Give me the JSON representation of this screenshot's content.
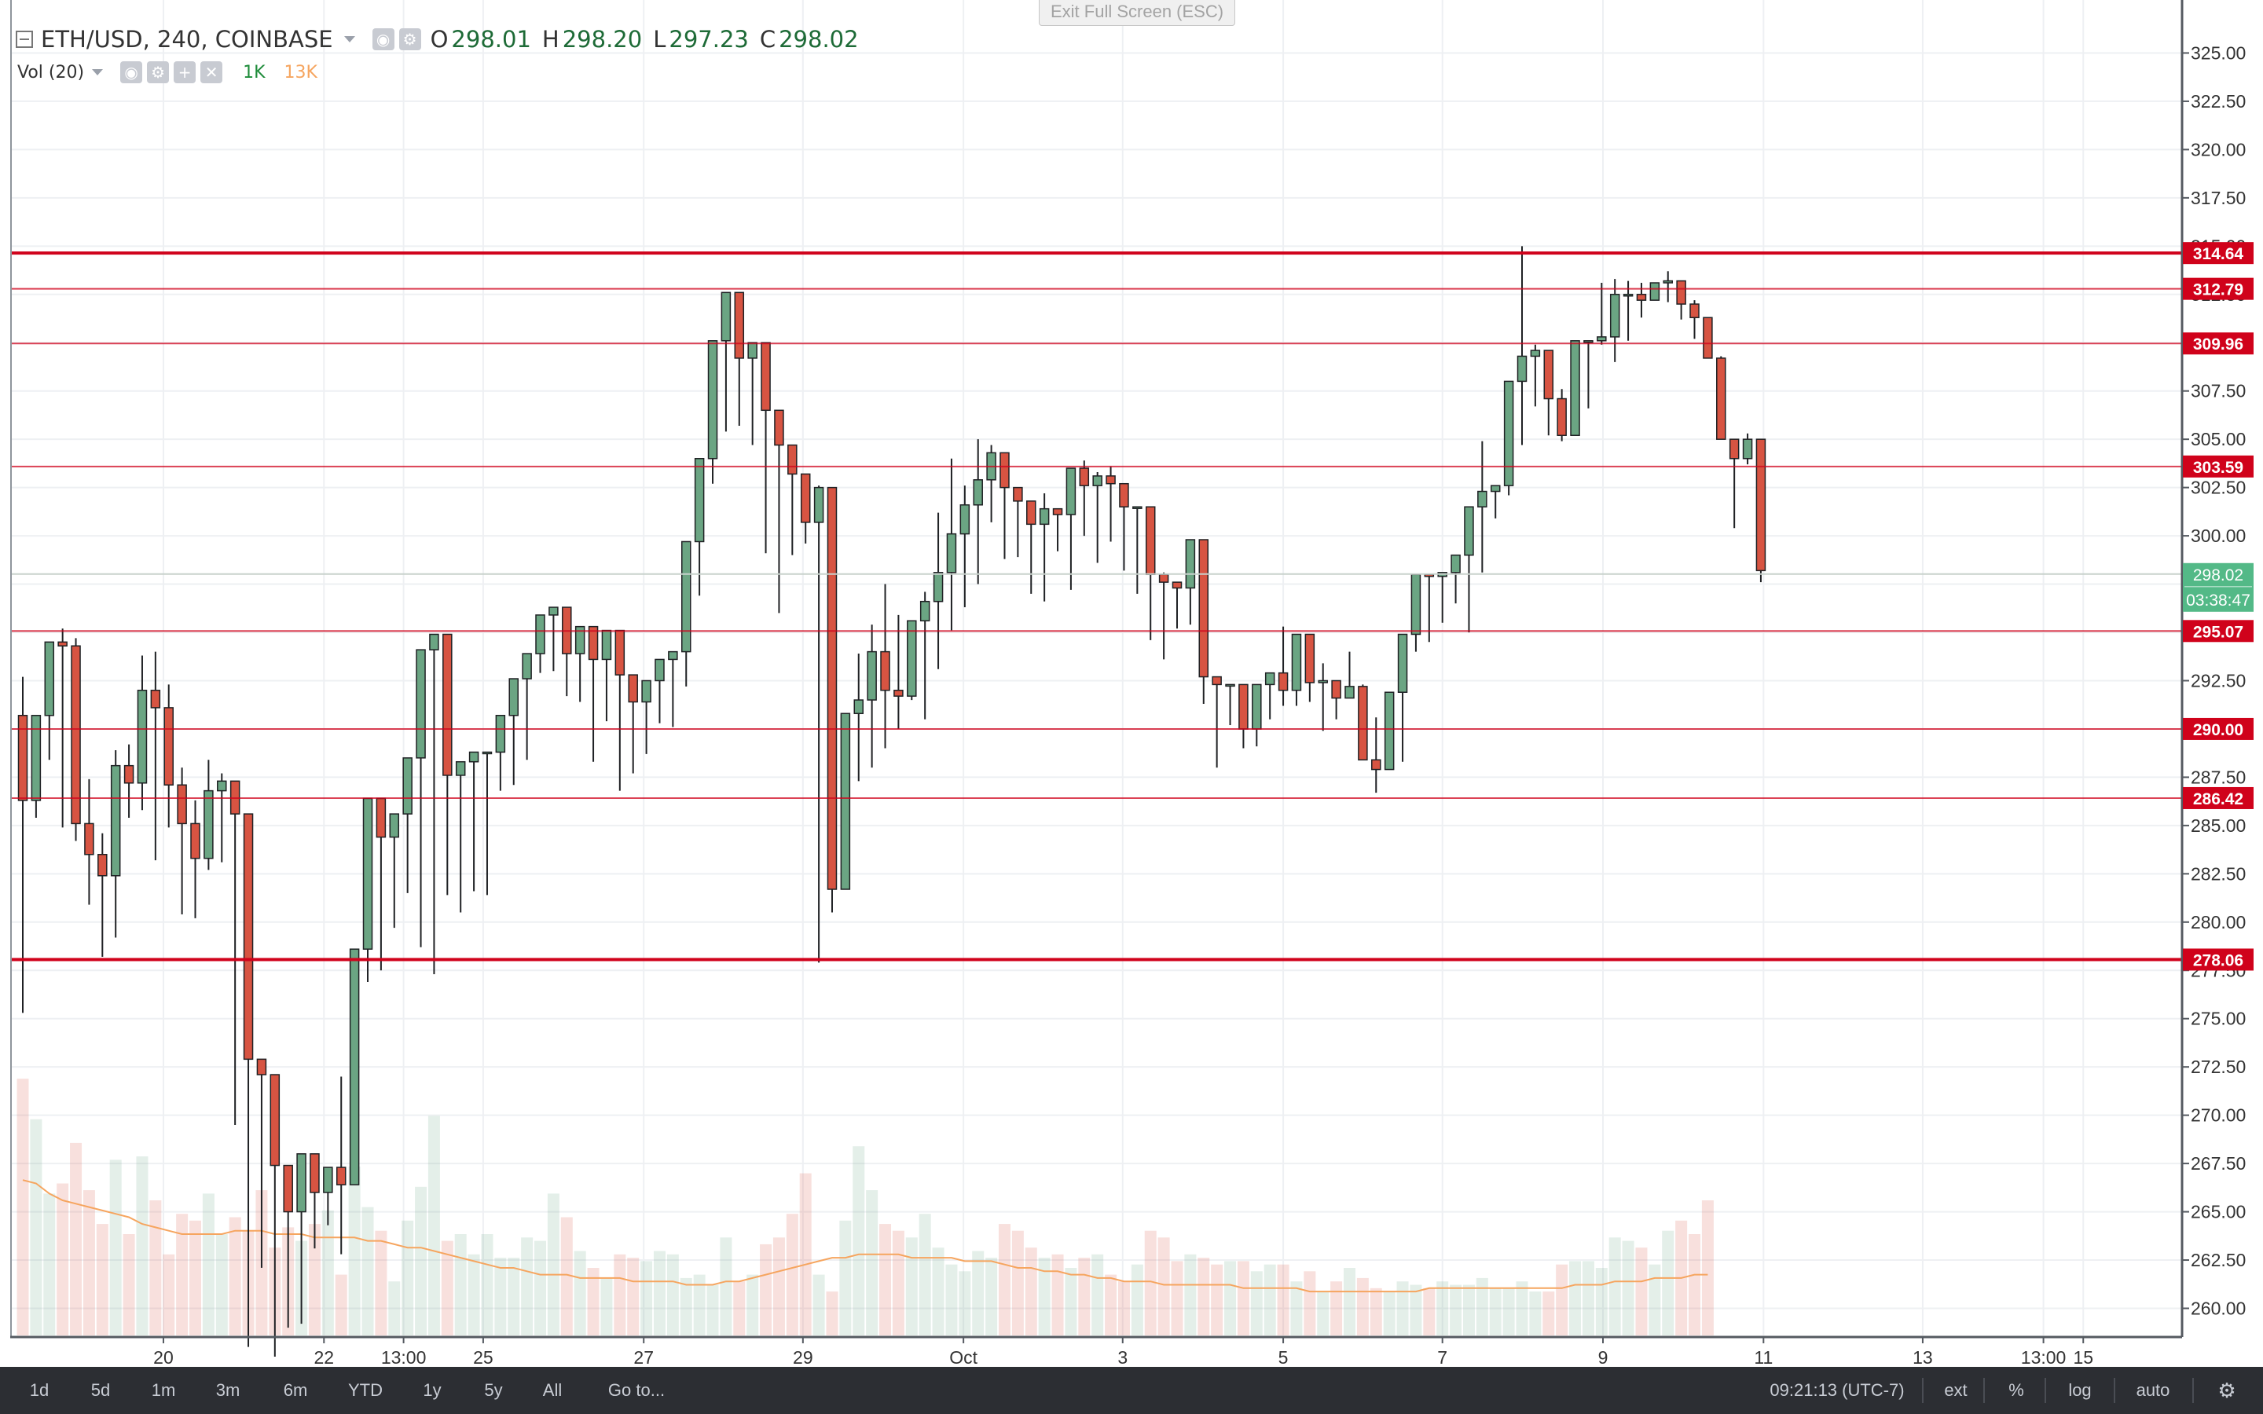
{
  "legend": {
    "symbol": "ETH/USD, 240, COINBASE",
    "open_label": "O",
    "open": "298.01",
    "high_label": "H",
    "high": "298.20",
    "low_label": "L",
    "low": "297.23",
    "close_label": "C",
    "close": "298.02",
    "volume_indicator": "Vol (20)",
    "volume_value": "1K",
    "volume_ma_value": "13K"
  },
  "exit_fullscreen": "Exit Full Screen (ESC)",
  "bottom_bar": {
    "ranges": [
      "1d",
      "5d",
      "1m",
      "3m",
      "6m",
      "YTD",
      "1y",
      "5y",
      "All"
    ],
    "goto_label": "Go to...",
    "clock": "09:21:13 (UTC-7)",
    "ext_label": "ext",
    "percent_label": "%",
    "log_label": "log",
    "auto_label": "auto"
  },
  "colors": {
    "up": "#6ba583",
    "down": "#d75442",
    "line": "#d0021b",
    "last_price": "#53b987",
    "volume_ma": "#f6a55f"
  },
  "chart_data": {
    "type": "candlestick",
    "symbol": "ETH/USD",
    "interval_minutes": 240,
    "exchange": "COINBASE",
    "y_range": [
      258.8,
      327.5
    ],
    "y_ticks": [
      "260.00",
      "262.50",
      "265.00",
      "267.50",
      "270.00",
      "272.50",
      "275.00",
      "277.50",
      "280.00",
      "282.50",
      "285.00",
      "287.50",
      "290.00",
      "292.50",
      "295.00",
      "297.50",
      "300.00",
      "302.50",
      "305.00",
      "307.50",
      "310.00",
      "312.50",
      "315.00",
      "317.50",
      "320.00",
      "322.50",
      "325.00"
    ],
    "x_ticks": [
      {
        "label": "20",
        "bar": 10.6
      },
      {
        "label": "22",
        "bar": 22.7
      },
      {
        "label": "13:00",
        "bar": 28.7
      },
      {
        "label": "25",
        "bar": 34.7
      },
      {
        "label": "27",
        "bar": 46.8
      },
      {
        "label": "29",
        "bar": 58.8
      },
      {
        "label": "Oct",
        "bar": 70.9
      },
      {
        "label": "3",
        "bar": 82.9
      },
      {
        "label": "5",
        "bar": 95.0
      },
      {
        "label": "7",
        "bar": 107.0
      },
      {
        "label": "9",
        "bar": 119.1
      },
      {
        "label": "11",
        "bar": 131.2
      },
      {
        "label": "13",
        "bar": 143.2
      },
      {
        "label": "13:00",
        "bar": 152.3
      },
      {
        "label": "15",
        "bar": 155.3
      }
    ],
    "horizontal_lines": [
      {
        "value": 314.64,
        "label": "314.64",
        "style": "thick"
      },
      {
        "value": 312.79,
        "label": "312.79",
        "style": "thin"
      },
      {
        "value": 309.96,
        "label": "309.96",
        "style": "thin"
      },
      {
        "value": 303.59,
        "label": "303.59",
        "style": "thin"
      },
      {
        "value": 295.07,
        "label": "295.07",
        "style": "thin"
      },
      {
        "value": 290.0,
        "label": "290.00",
        "style": "thin"
      },
      {
        "value": 286.42,
        "label": "286.42",
        "style": "thin"
      },
      {
        "value": 278.06,
        "label": "278.06",
        "style": "thick"
      }
    ],
    "last_price": {
      "value": 298.02,
      "label": "298.02",
      "countdown": "03:38:47"
    },
    "candles": [
      [
        290.7,
        292.7,
        275.3,
        286.3
      ],
      [
        286.3,
        290.7,
        285.4,
        290.7
      ],
      [
        290.7,
        293.0,
        288.4,
        294.5
      ],
      [
        294.5,
        295.2,
        284.9,
        294.3
      ],
      [
        294.3,
        294.7,
        284.2,
        285.1
      ],
      [
        285.1,
        287.4,
        280.9,
        283.5
      ],
      [
        283.5,
        284.6,
        278.2,
        282.4
      ],
      [
        282.4,
        288.9,
        279.2,
        288.1
      ],
      [
        288.1,
        289.2,
        285.4,
        287.2
      ],
      [
        287.2,
        293.8,
        285.8,
        292.0
      ],
      [
        292.0,
        294.0,
        283.2,
        291.1
      ],
      [
        291.1,
        292.3,
        284.9,
        287.1
      ],
      [
        287.1,
        288.0,
        280.4,
        285.1
      ],
      [
        285.1,
        286.3,
        280.2,
        283.3
      ],
      [
        283.3,
        288.4,
        282.7,
        286.8
      ],
      [
        286.8,
        287.7,
        283.1,
        287.3
      ],
      [
        287.3,
        285.3,
        269.5,
        285.6
      ],
      [
        285.6,
        272.7,
        258.0,
        272.9
      ],
      [
        272.9,
        264.5,
        262.1,
        272.1
      ],
      [
        272.1,
        266.4,
        257.5,
        267.4
      ],
      [
        267.4,
        258.8,
        259.0,
        265.0
      ],
      [
        265.0,
        261.0,
        259.2,
        268.0
      ],
      [
        268.0,
        264.0,
        263.1,
        266.0
      ],
      [
        266.0,
        264.7,
        264.3,
        267.3
      ],
      [
        267.3,
        272.0,
        262.8,
        266.4
      ],
      [
        266.4,
        268.4,
        270.0,
        278.6
      ],
      [
        278.6,
        282.3,
        276.9,
        286.4
      ],
      [
        286.4,
        280.4,
        277.5,
        284.4
      ],
      [
        284.4,
        283.4,
        279.7,
        285.6
      ],
      [
        285.6,
        286.6,
        281.5,
        288.5
      ],
      [
        288.5,
        294.0,
        278.7,
        294.1
      ],
      [
        294.1,
        294.0,
        277.3,
        294.9
      ],
      [
        294.9,
        280.9,
        281.4,
        287.6
      ],
      [
        287.6,
        282.8,
        280.5,
        288.3
      ],
      [
        288.3,
        287.1,
        281.6,
        288.8
      ],
      [
        288.8,
        288.6,
        281.4,
        288.8
      ],
      [
        288.8,
        283.3,
        286.8,
        290.7
      ],
      [
        290.7,
        285.0,
        287.1,
        292.6
      ],
      [
        292.6,
        291.0,
        288.4,
        293.9
      ],
      [
        293.9,
        292.8,
        292.9,
        295.9
      ],
      [
        295.9,
        294.2,
        293.0,
        296.3
      ],
      [
        296.3,
        294.3,
        291.7,
        293.9
      ],
      [
        293.9,
        292.5,
        291.4,
        295.3
      ],
      [
        295.3,
        293.0,
        288.3,
        293.6
      ],
      [
        293.6,
        293.9,
        290.4,
        295.1
      ],
      [
        295.1,
        290.0,
        286.8,
        292.8
      ],
      [
        292.8,
        287.5,
        287.7,
        291.4
      ],
      [
        291.4,
        288.2,
        288.7,
        292.5
      ],
      [
        292.5,
        291.6,
        290.3,
        293.6
      ],
      [
        293.6,
        289.4,
        290.1,
        294.0
      ],
      [
        294.0,
        297.3,
        292.2,
        299.7
      ],
      [
        299.7,
        300.1,
        296.9,
        304.0
      ],
      [
        304.0,
        304.1,
        302.7,
        310.1
      ],
      [
        310.1,
        308.9,
        305.4,
        312.6
      ],
      [
        312.6,
        309.2,
        305.7,
        309.2
      ],
      [
        309.2,
        306.6,
        304.7,
        310.0
      ],
      [
        310.0,
        304.6,
        299.1,
        306.5
      ],
      [
        306.5,
        303.8,
        296.0,
        304.7
      ],
      [
        304.7,
        300.0,
        299.0,
        303.2
      ],
      [
        303.2,
        300.5,
        299.6,
        300.7
      ],
      [
        300.7,
        302.6,
        277.9,
        302.5
      ],
      [
        302.5,
        286.5,
        280.5,
        281.7
      ],
      [
        281.7,
        290.4,
        282.1,
        290.8
      ],
      [
        290.8,
        293.9,
        287.3,
        291.5
      ],
      [
        291.5,
        295.4,
        288.0,
        294.0
      ],
      [
        294.0,
        297.5,
        289.0,
        292.0
      ],
      [
        292.0,
        295.9,
        290.0,
        291.7
      ],
      [
        291.7,
        290.4,
        291.5,
        295.6
      ],
      [
        295.6,
        297.1,
        290.5,
        296.6
      ],
      [
        296.6,
        301.2,
        293.1,
        298.1
      ],
      [
        298.1,
        304.0,
        295.1,
        300.1
      ],
      [
        300.1,
        302.6,
        296.3,
        301.6
      ],
      [
        301.6,
        305.0,
        297.5,
        302.9
      ],
      [
        302.9,
        304.7,
        300.7,
        304.3
      ],
      [
        304.3,
        302.6,
        298.8,
        302.5
      ],
      [
        302.5,
        301.6,
        298.9,
        301.8
      ],
      [
        301.8,
        300.3,
        297.0,
        300.6
      ],
      [
        300.6,
        302.2,
        296.6,
        301.4
      ],
      [
        301.4,
        301.2,
        299.2,
        301.1
      ],
      [
        301.1,
        301.8,
        297.2,
        303.5
      ],
      [
        303.5,
        303.9,
        300.0,
        302.6
      ],
      [
        302.6,
        303.3,
        298.6,
        303.1
      ],
      [
        303.1,
        303.6,
        299.7,
        302.7
      ],
      [
        302.7,
        302.4,
        298.2,
        301.5
      ],
      [
        301.5,
        300.5,
        297.0,
        301.5
      ],
      [
        301.5,
        299.6,
        294.6,
        298.0
      ],
      [
        298.0,
        298.1,
        293.6,
        297.6
      ],
      [
        297.6,
        296.8,
        295.2,
        297.3
      ],
      [
        297.3,
        299.5,
        295.4,
        299.8
      ],
      [
        299.8,
        292.7,
        291.3,
        292.7
      ],
      [
        292.7,
        292.6,
        288.0,
        292.3
      ],
      [
        292.3,
        291.1,
        290.2,
        292.3
      ],
      [
        292.3,
        292.3,
        289.0,
        290.0
      ],
      [
        290.0,
        291.5,
        289.1,
        292.3
      ],
      [
        292.3,
        292.0,
        290.5,
        292.9
      ],
      [
        292.9,
        295.3,
        291.2,
        292.0
      ],
      [
        292.0,
        293.3,
        291.2,
        294.9
      ],
      [
        294.9,
        293.0,
        291.4,
        292.4
      ],
      [
        292.4,
        293.4,
        289.9,
        292.5
      ],
      [
        292.5,
        292.1,
        290.5,
        291.6
      ],
      [
        291.6,
        294.0,
        292.6,
        292.2
      ],
      [
        292.2,
        292.3,
        289.1,
        288.4
      ],
      [
        288.4,
        290.6,
        286.7,
        287.9
      ],
      [
        287.9,
        291.9,
        289.2,
        291.9
      ],
      [
        291.9,
        294.9,
        288.3,
        294.9
      ],
      [
        294.9,
        294.3,
        294.0,
        298.0
      ],
      [
        298.0,
        297.6,
        294.5,
        297.9
      ],
      [
        297.9,
        296.3,
        295.5,
        298.1
      ],
      [
        298.1,
        296.1,
        296.5,
        299.0
      ],
      [
        299.0,
        300.9,
        295.0,
        301.5
      ],
      [
        301.5,
        304.9,
        298.1,
        302.3
      ],
      [
        302.3,
        301.2,
        300.9,
        302.6
      ],
      [
        302.6,
        305.6,
        302.1,
        308.0
      ],
      [
        308.0,
        315.0,
        304.7,
        309.3
      ],
      [
        309.3,
        309.9,
        306.7,
        309.6
      ],
      [
        309.6,
        308.0,
        305.2,
        307.1
      ],
      [
        307.1,
        307.6,
        304.9,
        305.2
      ],
      [
        305.2,
        306.4,
        305.2,
        310.1
      ],
      [
        310.1,
        309.9,
        306.6,
        310.1
      ],
      [
        310.1,
        313.1,
        309.9,
        310.3
      ],
      [
        310.3,
        313.3,
        309.0,
        312.5
      ],
      [
        312.5,
        313.2,
        310.1,
        312.5
      ],
      [
        312.5,
        313.1,
        311.3,
        312.2
      ],
      [
        312.2,
        313.0,
        312.6,
        313.1
      ],
      [
        313.1,
        313.7,
        312.1,
        313.2
      ],
      [
        313.2,
        313.2,
        311.2,
        312.0
      ],
      [
        312.0,
        312.2,
        310.2,
        311.3
      ],
      [
        311.3,
        310.7,
        309.2,
        309.2
      ],
      [
        309.2,
        309.3,
        305.1,
        305.0
      ],
      [
        305.0,
        304.4,
        300.4,
        304.0
      ],
      [
        304.0,
        305.3,
        303.7,
        305.0
      ],
      [
        305.0,
        298.6,
        297.6,
        298.2
      ]
    ],
    "volume": [
      7.6,
      6.4,
      4.2,
      4.5,
      5.7,
      4.3,
      3.3,
      5.2,
      3.0,
      5.3,
      4.0,
      2.4,
      3.6,
      3.4,
      4.2,
      3.0,
      3.5,
      3.1,
      4.3,
      2.6,
      3.2,
      2.8,
      3.3,
      3.7,
      1.8,
      5.0,
      3.8,
      3.1,
      1.6,
      3.4,
      4.4,
      6.5,
      2.8,
      3.0,
      2.4,
      3.0,
      2.3,
      2.3,
      2.9,
      2.8,
      4.2,
      3.5,
      2.5,
      2.0,
      1.7,
      2.4,
      2.3,
      2.2,
      2.5,
      2.4,
      1.7,
      1.8,
      1.5,
      2.9,
      1.6,
      1.8,
      2.7,
      2.9,
      3.6,
      4.8,
      1.8,
      1.3,
      3.4,
      5.6,
      4.3,
      3.3,
      3.1,
      2.9,
      3.6,
      2.6,
      2.1,
      1.9,
      2.5,
      2.3,
      3.3,
      3.1,
      2.6,
      2.3,
      2.4,
      2.0,
      2.3,
      2.4,
      1.8,
      1.6,
      2.1,
      3.1,
      2.9,
      2.2,
      2.4,
      2.3,
      2.1,
      2.2,
      2.2,
      1.9,
      2.1,
      2.1,
      1.6,
      1.9,
      1.3,
      1.6,
      2.0,
      1.7,
      1.4,
      1.3,
      1.6,
      1.5,
      1.4,
      1.6,
      1.5,
      1.5,
      1.7,
      1.4,
      1.4,
      1.6,
      1.3,
      1.3,
      2.1,
      2.2,
      2.2,
      2.0,
      2.9,
      2.8,
      2.6,
      2.1,
      3.1,
      3.4,
      3.0,
      4.0
    ],
    "volume_ma": [
      4.6,
      4.5,
      4.2,
      4.0,
      3.9,
      3.8,
      3.7,
      3.6,
      3.5,
      3.3,
      3.2,
      3.1,
      3.0,
      3.0,
      3.0,
      3.0,
      3.1,
      3.1,
      3.1,
      3.0,
      3.0,
      3.0,
      2.9,
      2.9,
      2.9,
      2.9,
      2.8,
      2.8,
      2.7,
      2.6,
      2.6,
      2.5,
      2.4,
      2.3,
      2.2,
      2.1,
      2.0,
      2.0,
      1.9,
      1.8,
      1.8,
      1.8,
      1.7,
      1.7,
      1.7,
      1.7,
      1.6,
      1.6,
      1.6,
      1.6,
      1.5,
      1.5,
      1.5,
      1.6,
      1.6,
      1.7,
      1.8,
      1.9,
      2.0,
      2.1,
      2.2,
      2.3,
      2.3,
      2.4,
      2.4,
      2.4,
      2.4,
      2.3,
      2.3,
      2.3,
      2.3,
      2.2,
      2.2,
      2.2,
      2.1,
      2.0,
      2.0,
      1.9,
      1.9,
      1.8,
      1.8,
      1.7,
      1.7,
      1.6,
      1.6,
      1.6,
      1.5,
      1.5,
      1.5,
      1.5,
      1.5,
      1.5,
      1.4,
      1.4,
      1.4,
      1.4,
      1.4,
      1.3,
      1.3,
      1.3,
      1.3,
      1.3,
      1.3,
      1.3,
      1.3,
      1.3,
      1.4,
      1.4,
      1.4,
      1.4,
      1.4,
      1.4,
      1.4,
      1.4,
      1.4,
      1.4,
      1.4,
      1.5,
      1.5,
      1.5,
      1.6,
      1.6,
      1.6,
      1.7,
      1.7,
      1.7,
      1.8,
      1.8
    ]
  }
}
